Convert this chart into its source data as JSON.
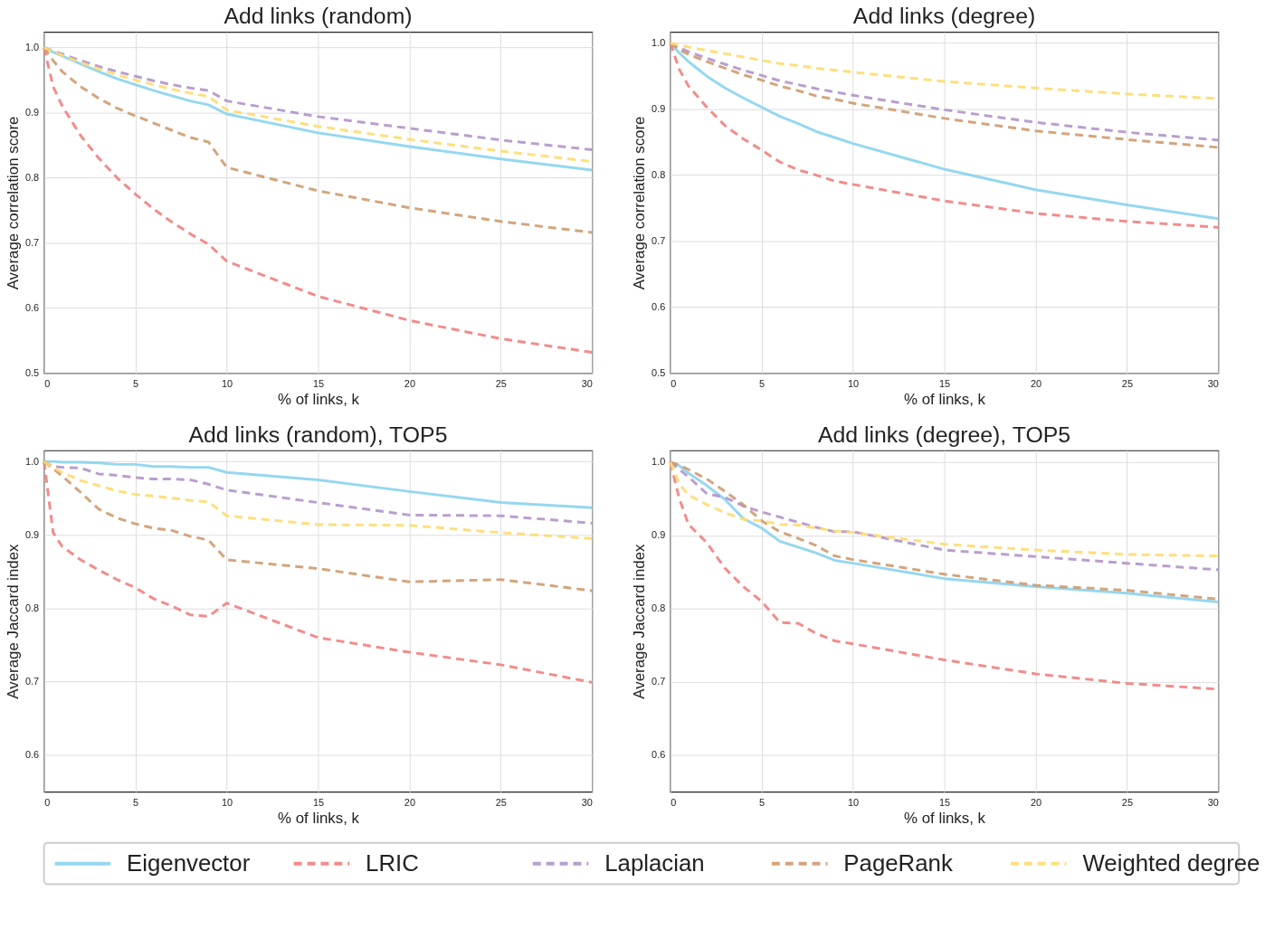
{
  "chart_data": [
    {
      "type": "line",
      "title": "Add links (random)",
      "xlabel": "% of links, k",
      "ylabel": "Average correlation score",
      "x": [
        0,
        0.5,
        1,
        2,
        3,
        4,
        5,
        6,
        7,
        8,
        9,
        10,
        15,
        20,
        25,
        30
      ],
      "xlim": [
        0,
        30
      ],
      "xticks": [
        0,
        5,
        10,
        15,
        20,
        25,
        30
      ],
      "ylim": [
        0.5,
        1.024
      ],
      "yticks": [
        {
          "value": 0.5,
          "label": "0.5"
        },
        {
          "value": 0.6,
          "label": "0.6"
        },
        {
          "value": 0.7,
          "label": "0.7"
        },
        {
          "value": 0.8,
          "label": "0.8"
        },
        {
          "value": 0.9,
          "label": "0.9"
        },
        {
          "value": 1,
          "label": "1.0"
        }
      ],
      "grid": true,
      "series": [
        {
          "color": "#89d3ee",
          "line_style": "solid",
          "values": [
            1,
            0.993,
            0.987,
            0.975,
            0.963,
            0.952,
            0.943,
            0.934,
            0.926,
            0.918,
            0.912,
            0.898,
            0.869,
            0.848,
            0.829,
            0.812
          ]
        },
        {
          "color": "#f08080",
          "line_style": "dashed",
          "values": [
            1,
            0.94,
            0.91,
            0.865,
            0.83,
            0.8,
            0.775,
            0.752,
            0.732,
            0.714,
            0.698,
            0.672,
            0.618,
            0.581,
            0.553,
            0.532
          ]
        },
        {
          "color": "#b293c9",
          "line_style": "dashed",
          "values": [
            1,
            0.995,
            0.99,
            0.98,
            0.971,
            0.963,
            0.956,
            0.949,
            0.943,
            0.938,
            0.934,
            0.918,
            0.894,
            0.876,
            0.858,
            0.843
          ]
        },
        {
          "color": "#cd9b6f",
          "line_style": "dashed",
          "values": [
            1,
            0.98,
            0.963,
            0.94,
            0.922,
            0.907,
            0.895,
            0.884,
            0.873,
            0.862,
            0.855,
            0.816,
            0.78,
            0.754,
            0.733,
            0.716
          ]
        },
        {
          "color": "#fddc6f",
          "line_style": "dashed",
          "values": [
            1,
            0.994,
            0.988,
            0.977,
            0.967,
            0.958,
            0.95,
            0.943,
            0.936,
            0.93,
            0.925,
            0.904,
            0.879,
            0.859,
            0.841,
            0.825
          ]
        }
      ]
    },
    {
      "type": "line",
      "title": "Add links (degree)",
      "xlabel": "% of links, k",
      "ylabel": "Average correlation score",
      "x": [
        0,
        0.5,
        1,
        2,
        3,
        4,
        5,
        6,
        7,
        8,
        9,
        10,
        15,
        20,
        25,
        30
      ],
      "xlim": [
        0,
        30
      ],
      "xticks": [
        0,
        5,
        10,
        15,
        20,
        25,
        30
      ],
      "ylim": [
        0.5,
        1.017
      ],
      "yticks": [
        {
          "value": 0.5,
          "label": "0.5"
        },
        {
          "value": 0.6,
          "label": "0.6"
        },
        {
          "value": 0.7,
          "label": "0.7"
        },
        {
          "value": 0.8,
          "label": "0.8"
        },
        {
          "value": 0.9,
          "label": "0.9"
        },
        {
          "value": 1,
          "label": "1.0"
        }
      ],
      "grid": true,
      "series": [
        {
          "color": "#89d3ee",
          "line_style": "solid",
          "values": [
            1,
            0.985,
            0.972,
            0.95,
            0.932,
            0.917,
            0.903,
            0.889,
            0.878,
            0.866,
            0.857,
            0.848,
            0.809,
            0.778,
            0.755,
            0.734
          ]
        },
        {
          "color": "#f08080",
          "line_style": "dashed",
          "values": [
            1,
            0.96,
            0.935,
            0.903,
            0.875,
            0.855,
            0.838,
            0.82,
            0.808,
            0.8,
            0.791,
            0.786,
            0.761,
            0.742,
            0.73,
            0.721
          ]
        },
        {
          "color": "#b293c9",
          "line_style": "dashed",
          "values": [
            1,
            0.993,
            0.987,
            0.977,
            0.968,
            0.959,
            0.951,
            0.943,
            0.937,
            0.931,
            0.926,
            0.921,
            0.899,
            0.88,
            0.865,
            0.853
          ]
        },
        {
          "color": "#cd9b6f",
          "line_style": "dashed",
          "values": [
            1,
            0.99,
            0.983,
            0.972,
            0.962,
            0.952,
            0.944,
            0.935,
            0.928,
            0.92,
            0.915,
            0.909,
            0.886,
            0.867,
            0.854,
            0.842
          ]
        },
        {
          "color": "#fddc6f",
          "line_style": "dashed",
          "values": [
            1,
            0.997,
            0.994,
            0.989,
            0.984,
            0.979,
            0.974,
            0.969,
            0.966,
            0.962,
            0.959,
            0.956,
            0.942,
            0.932,
            0.923,
            0.916
          ]
        }
      ]
    },
    {
      "type": "line",
      "title": "Add links (random), TOP5",
      "xlabel": "% of links, k",
      "ylabel": "Average Jaccard index",
      "x": [
        0,
        0.5,
        1,
        2,
        3,
        4,
        5,
        6,
        7,
        8,
        9,
        10,
        15,
        20,
        25,
        30
      ],
      "xlim": [
        0,
        30
      ],
      "xticks": [
        0,
        5,
        10,
        15,
        20,
        25,
        30
      ],
      "ylim": [
        0.55,
        1.015
      ],
      "yticks": [
        {
          "value": 0.6,
          "label": "0.6"
        },
        {
          "value": 0.7,
          "label": "0.7"
        },
        {
          "value": 0.8,
          "label": "0.8"
        },
        {
          "value": 0.9,
          "label": "0.9"
        },
        {
          "value": 1,
          "label": "1.0"
        }
      ],
      "grid": true,
      "series": [
        {
          "color": "#89d3ee",
          "line_style": "solid",
          "values": [
            1,
            1,
            0.999,
            0.999,
            0.998,
            0.996,
            0.996,
            0.993,
            0.993,
            0.992,
            0.992,
            0.985,
            0.975,
            0.959,
            0.944,
            0.937
          ]
        },
        {
          "color": "#f08080",
          "line_style": "dashed",
          "values": [
            1,
            0.903,
            0.884,
            0.866,
            0.852,
            0.839,
            0.828,
            0.813,
            0.803,
            0.791,
            0.789,
            0.807,
            0.76,
            0.74,
            0.723,
            0.699
          ]
        },
        {
          "color": "#b293c9",
          "line_style": "dashed",
          "values": [
            1,
            0.993,
            0.992,
            0.991,
            0.983,
            0.981,
            0.978,
            0.976,
            0.976,
            0.975,
            0.969,
            0.961,
            0.944,
            0.927,
            0.926,
            0.916
          ]
        },
        {
          "color": "#cd9b6f",
          "line_style": "dashed",
          "values": [
            1,
            0.99,
            0.98,
            0.958,
            0.935,
            0.923,
            0.915,
            0.909,
            0.906,
            0.898,
            0.893,
            0.866,
            0.854,
            0.836,
            0.839,
            0.824
          ]
        },
        {
          "color": "#fddc6f",
          "line_style": "dashed",
          "values": [
            1,
            0.992,
            0.985,
            0.974,
            0.967,
            0.96,
            0.955,
            0.953,
            0.95,
            0.947,
            0.945,
            0.926,
            0.914,
            0.913,
            0.903,
            0.895
          ]
        }
      ]
    },
    {
      "type": "line",
      "title": "Add links (degree), TOP5",
      "xlabel": "% of links, k",
      "ylabel": "Average Jaccard index",
      "x": [
        0,
        0.5,
        1,
        2,
        3,
        4,
        5,
        6,
        7,
        8,
        9,
        10,
        15,
        20,
        25,
        30
      ],
      "xlim": [
        0,
        30
      ],
      "xticks": [
        0,
        5,
        10,
        15,
        20,
        25,
        30
      ],
      "ylim": [
        0.55,
        1.016
      ],
      "yticks": [
        {
          "value": 0.6,
          "label": "0.6"
        },
        {
          "value": 0.7,
          "label": "0.7"
        },
        {
          "value": 0.8,
          "label": "0.8"
        },
        {
          "value": 0.9,
          "label": "0.9"
        },
        {
          "value": 1,
          "label": "1.0"
        }
      ],
      "grid": true,
      "legend": "bottom",
      "series": [
        {
          "name": "Eigenvector",
          "color": "#89d3ee",
          "line_style": "solid",
          "values": [
            1,
            0.995,
            0.985,
            0.968,
            0.949,
            0.923,
            0.91,
            0.892,
            0.884,
            0.876,
            0.866,
            0.862,
            0.841,
            0.83,
            0.821,
            0.809
          ]
        },
        {
          "name": "LRIC",
          "color": "#f08080",
          "line_style": "dashed",
          "values": [
            1,
            0.95,
            0.915,
            0.89,
            0.855,
            0.83,
            0.81,
            0.781,
            0.78,
            0.766,
            0.756,
            0.752,
            0.73,
            0.711,
            0.698,
            0.69
          ]
        },
        {
          "name": "Laplacian",
          "color": "#b293c9",
          "line_style": "dashed",
          "values": [
            1,
            0.99,
            0.98,
            0.957,
            0.952,
            0.94,
            0.932,
            0.925,
            0.918,
            0.911,
            0.905,
            0.905,
            0.88,
            0.871,
            0.862,
            0.853
          ]
        },
        {
          "name": "PageRank",
          "color": "#cd9b6f",
          "line_style": "dashed",
          "values": [
            1,
            0.996,
            0.99,
            0.977,
            0.96,
            0.942,
            0.92,
            0.905,
            0.896,
            0.886,
            0.872,
            0.867,
            0.847,
            0.832,
            0.825,
            0.813
          ]
        },
        {
          "name": "Weighted degree",
          "color": "#fddc6f",
          "line_style": "dashed",
          "values": [
            1,
            0.97,
            0.955,
            0.942,
            0.931,
            0.922,
            0.92,
            0.915,
            0.914,
            0.91,
            0.906,
            0.904,
            0.888,
            0.88,
            0.874,
            0.872
          ]
        }
      ]
    }
  ]
}
